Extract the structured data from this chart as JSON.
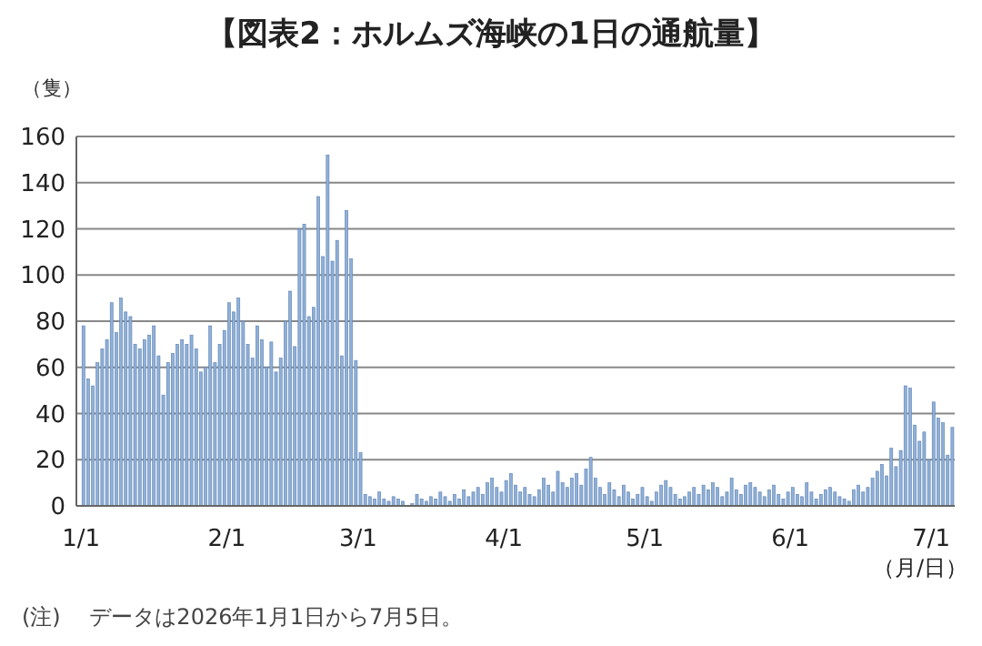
{
  "chart_data": {
    "type": "bar",
    "title": "【図表2：ホルムズ海峡の1日の通航量】",
    "ylabel": "（隻）",
    "xlabel": "（月/日）",
    "annotations": [
      "(注)　 データは2026年1月1日から7月5日。"
    ],
    "x": [
      "2026-01-01",
      "2026-01-02",
      "2026-01-03",
      "2026-01-04",
      "2026-01-05",
      "2026-01-06",
      "2026-01-07",
      "2026-01-08",
      "2026-01-09",
      "2026-01-10",
      "2026-01-11",
      "2026-01-12",
      "2026-01-13",
      "2026-01-14",
      "2026-01-15",
      "2026-01-16",
      "2026-01-17",
      "2026-01-18",
      "2026-01-19",
      "2026-01-20",
      "2026-01-21",
      "2026-01-22",
      "2026-01-23",
      "2026-01-24",
      "2026-01-25",
      "2026-01-26",
      "2026-01-27",
      "2026-01-28",
      "2026-01-29",
      "2026-01-30",
      "2026-01-31",
      "2026-02-01",
      "2026-02-02",
      "2026-02-03",
      "2026-02-04",
      "2026-02-05",
      "2026-02-06",
      "2026-02-07",
      "2026-02-08",
      "2026-02-09",
      "2026-02-10",
      "2026-02-11",
      "2026-02-12",
      "2026-02-13",
      "2026-02-14",
      "2026-02-15",
      "2026-02-16",
      "2026-02-17",
      "2026-02-18",
      "2026-02-19",
      "2026-02-20",
      "2026-02-21",
      "2026-02-22",
      "2026-02-23",
      "2026-02-24",
      "2026-02-25",
      "2026-02-26",
      "2026-02-27",
      "2026-02-28",
      "2026-03-01",
      "2026-03-02",
      "2026-03-03",
      "2026-03-04",
      "2026-03-05",
      "2026-03-06",
      "2026-03-07",
      "2026-03-08",
      "2026-03-09",
      "2026-03-10",
      "2026-03-11",
      "2026-03-12",
      "2026-03-13",
      "2026-03-14",
      "2026-03-15",
      "2026-03-16",
      "2026-03-17",
      "2026-03-18",
      "2026-03-19",
      "2026-03-20",
      "2026-03-21",
      "2026-03-22",
      "2026-03-23",
      "2026-03-24",
      "2026-03-25",
      "2026-03-26",
      "2026-03-27",
      "2026-03-28",
      "2026-03-29",
      "2026-03-30",
      "2026-03-31",
      "2026-04-01",
      "2026-04-02",
      "2026-04-03",
      "2026-04-04",
      "2026-04-05",
      "2026-04-06",
      "2026-04-07",
      "2026-04-08",
      "2026-04-09",
      "2026-04-10",
      "2026-04-11",
      "2026-04-12",
      "2026-04-13",
      "2026-04-14",
      "2026-04-15",
      "2026-04-16",
      "2026-04-17",
      "2026-04-18",
      "2026-04-19",
      "2026-04-20",
      "2026-04-21",
      "2026-04-22",
      "2026-04-23",
      "2026-04-24",
      "2026-04-25",
      "2026-04-26",
      "2026-04-27",
      "2026-04-28",
      "2026-04-29",
      "2026-04-30",
      "2026-05-01",
      "2026-05-02",
      "2026-05-03",
      "2026-05-04",
      "2026-05-05",
      "2026-05-06",
      "2026-05-07",
      "2026-05-08",
      "2026-05-09",
      "2026-05-10",
      "2026-05-11",
      "2026-05-12",
      "2026-05-13",
      "2026-05-14",
      "2026-05-15",
      "2026-05-16",
      "2026-05-17",
      "2026-05-18",
      "2026-05-19",
      "2026-05-20",
      "2026-05-21",
      "2026-05-22",
      "2026-05-23",
      "2026-05-24",
      "2026-05-25",
      "2026-05-26",
      "2026-05-27",
      "2026-05-28",
      "2026-05-29",
      "2026-05-30",
      "2026-05-31",
      "2026-06-01",
      "2026-06-02",
      "2026-06-03",
      "2026-06-04",
      "2026-06-05",
      "2026-06-06",
      "2026-06-07",
      "2026-06-08",
      "2026-06-09",
      "2026-06-10",
      "2026-06-11",
      "2026-06-12",
      "2026-06-13",
      "2026-06-14",
      "2026-06-15",
      "2026-06-16",
      "2026-06-17",
      "2026-06-18",
      "2026-06-19",
      "2026-06-20",
      "2026-06-21",
      "2026-06-22",
      "2026-06-23",
      "2026-06-24",
      "2026-06-25",
      "2026-06-26",
      "2026-06-27",
      "2026-06-28",
      "2026-06-29",
      "2026-06-30",
      "2026-07-01",
      "2026-07-02",
      "2026-07-03",
      "2026-07-04",
      "2026-07-05"
    ],
    "values": [
      78,
      55,
      52,
      62,
      68,
      72,
      88,
      75,
      90,
      84,
      82,
      70,
      68,
      72,
      74,
      78,
      65,
      48,
      62,
      66,
      70,
      72,
      70,
      74,
      68,
      58,
      60,
      78,
      62,
      70,
      76,
      88,
      84,
      90,
      80,
      70,
      64,
      78,
      72,
      60,
      71,
      58,
      64,
      80,
      93,
      69,
      120,
      122,
      82,
      86,
      134,
      108,
      152,
      106,
      115,
      65,
      128,
      107,
      63,
      23,
      5,
      4,
      3,
      6,
      3,
      2,
      4,
      3,
      2,
      0,
      1,
      5,
      3,
      2,
      4,
      3,
      6,
      4,
      2,
      5,
      3,
      7,
      4,
      6,
      8,
      5,
      10,
      12,
      8,
      6,
      11,
      14,
      9,
      6,
      8,
      5,
      4,
      7,
      12,
      9,
      6,
      15,
      10,
      8,
      12,
      14,
      9,
      16,
      21,
      12,
      8,
      5,
      10,
      7,
      4,
      9,
      6,
      3,
      5,
      8,
      4,
      2,
      6,
      9,
      11,
      8,
      5,
      3,
      4,
      6,
      8,
      5,
      9,
      7,
      10,
      8,
      4,
      6,
      12,
      7,
      5,
      9,
      10,
      8,
      6,
      4,
      7,
      9,
      5,
      3,
      6,
      8,
      5,
      4,
      10,
      6,
      3,
      5,
      7,
      8,
      6,
      4,
      3,
      2,
      7,
      9,
      6,
      8,
      12,
      15,
      18,
      13,
      25,
      17,
      24,
      52,
      51,
      35,
      28,
      32,
      20,
      45,
      38,
      36,
      22,
      34
    ],
    "color": "#8fb0d8",
    "xlim": [
      "2025-12-31",
      "2026-07-06"
    ],
    "xticks": [
      {
        "value": "2026-01-01",
        "label": "1/1"
      },
      {
        "value": "2026-02-01",
        "label": "2/1"
      },
      {
        "value": "2026-03-01",
        "label": "3/1"
      },
      {
        "value": "2026-04-01",
        "label": "4/1"
      },
      {
        "value": "2026-05-01",
        "label": "5/1"
      },
      {
        "value": "2026-06-01",
        "label": "6/1"
      },
      {
        "value": "2026-07-01",
        "label": "7/1"
      }
    ],
    "ylim": [
      0,
      160
    ],
    "yticks": [
      0,
      20,
      40,
      60,
      80,
      100,
      120,
      140,
      160
    ],
    "grid": "y"
  }
}
